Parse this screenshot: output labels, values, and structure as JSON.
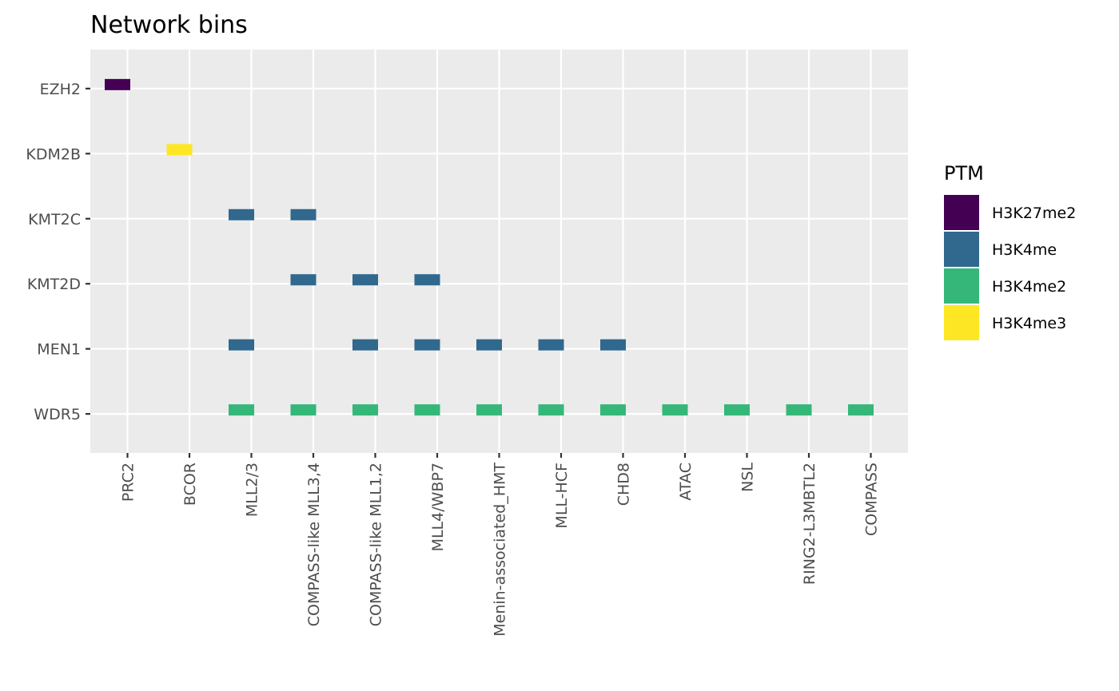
{
  "chart_data": {
    "type": "heatmap",
    "title": "Network bins",
    "xlabel": "",
    "ylabel": "",
    "x_categories": [
      "PRC2",
      "BCOR",
      "MLL2/3",
      "COMPASS-like MLL3,4",
      "COMPASS-like MLL1,2",
      "MLL4/WBP7",
      "Menin-associated_HMT",
      "MLL-HCF",
      "CHD8",
      "ATAC",
      "NSL",
      "RING2-L3MBTL2",
      "COMPASS"
    ],
    "y_categories": [
      "EZH2",
      "KDM2B",
      "KMT2C",
      "KMT2D",
      "MEN1",
      "WDR5"
    ],
    "legend": {
      "title": "PTM",
      "placement": "right",
      "entries": [
        {
          "label": "H3K27me2",
          "color": "#440154"
        },
        {
          "label": "H3K4me",
          "color": "#31688e"
        },
        {
          "label": "H3K4me2",
          "color": "#35b779"
        },
        {
          "label": "H3K4me3",
          "color": "#fde725"
        }
      ]
    },
    "grid": true,
    "points": [
      {
        "x": "PRC2",
        "y": "EZH2",
        "ptm": "H3K27me2"
      },
      {
        "x": "BCOR",
        "y": "KDM2B",
        "ptm": "H3K4me3"
      },
      {
        "x": "MLL2/3",
        "y": "KMT2C",
        "ptm": "H3K4me"
      },
      {
        "x": "COMPASS-like MLL3,4",
        "y": "KMT2C",
        "ptm": "H3K4me"
      },
      {
        "x": "COMPASS-like MLL3,4",
        "y": "KMT2D",
        "ptm": "H3K4me"
      },
      {
        "x": "COMPASS-like MLL1,2",
        "y": "KMT2D",
        "ptm": "H3K4me"
      },
      {
        "x": "MLL4/WBP7",
        "y": "KMT2D",
        "ptm": "H3K4me"
      },
      {
        "x": "MLL2/3",
        "y": "MEN1",
        "ptm": "H3K4me"
      },
      {
        "x": "COMPASS-like MLL1,2",
        "y": "MEN1",
        "ptm": "H3K4me"
      },
      {
        "x": "MLL4/WBP7",
        "y": "MEN1",
        "ptm": "H3K4me"
      },
      {
        "x": "Menin-associated_HMT",
        "y": "MEN1",
        "ptm": "H3K4me"
      },
      {
        "x": "MLL-HCF",
        "y": "MEN1",
        "ptm": "H3K4me"
      },
      {
        "x": "CHD8",
        "y": "MEN1",
        "ptm": "H3K4me"
      },
      {
        "x": "MLL2/3",
        "y": "WDR5",
        "ptm": "H3K4me2"
      },
      {
        "x": "COMPASS-like MLL3,4",
        "y": "WDR5",
        "ptm": "H3K4me2"
      },
      {
        "x": "COMPASS-like MLL1,2",
        "y": "WDR5",
        "ptm": "H3K4me2"
      },
      {
        "x": "MLL4/WBP7",
        "y": "WDR5",
        "ptm": "H3K4me2"
      },
      {
        "x": "Menin-associated_HMT",
        "y": "WDR5",
        "ptm": "H3K4me2"
      },
      {
        "x": "MLL-HCF",
        "y": "WDR5",
        "ptm": "H3K4me2"
      },
      {
        "x": "CHD8",
        "y": "WDR5",
        "ptm": "H3K4me2"
      },
      {
        "x": "ATAC",
        "y": "WDR5",
        "ptm": "H3K4me2"
      },
      {
        "x": "NSL",
        "y": "WDR5",
        "ptm": "H3K4me2"
      },
      {
        "x": "RING2-L3MBTL2",
        "y": "WDR5",
        "ptm": "H3K4me2"
      },
      {
        "x": "COMPASS",
        "y": "WDR5",
        "ptm": "H3K4me2"
      }
    ],
    "colors": {
      "panel_background": "#ebebeb",
      "grid_line": "#ffffff",
      "tick": "#333333"
    }
  }
}
